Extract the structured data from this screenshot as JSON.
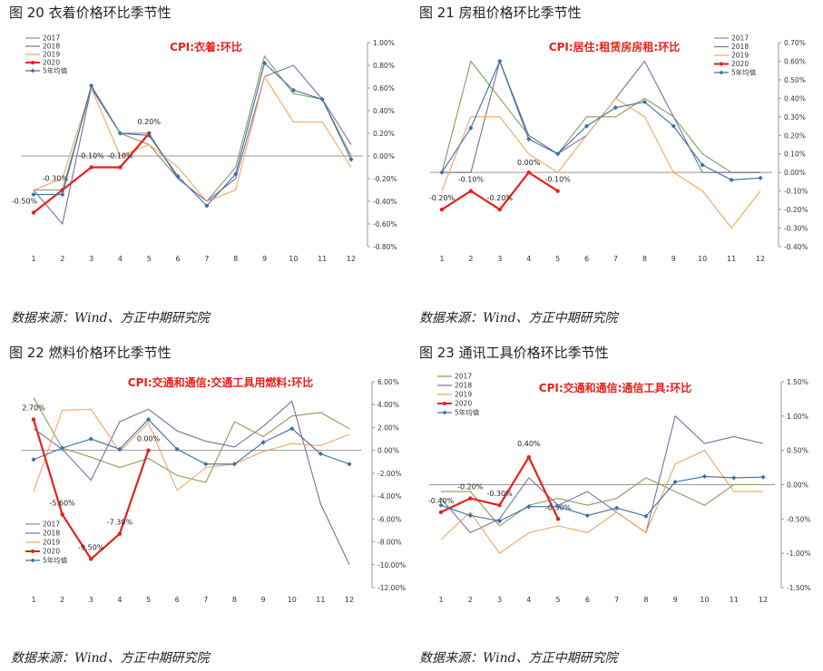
{
  "source_text": "数据来源：Wind、方正中期研究院",
  "chart_data": [
    {
      "type": "line",
      "figure_title": "图 20   衣着价格环比季节性",
      "title": "CPI:衣着:环比",
      "x": [
        "1",
        "2",
        "3",
        "4",
        "5",
        "6",
        "7",
        "8",
        "9",
        "10",
        "11",
        "12"
      ],
      "y_axis": {
        "side": "right",
        "min": -0.8,
        "max": 1.0,
        "step": 0.2,
        "decimals": 2,
        "suffix": "%"
      },
      "legend": {
        "position": "top-left",
        "entries": [
          "2017",
          "2018",
          "2019",
          "2020",
          "5年均值"
        ]
      },
      "series": [
        {
          "name": "2017",
          "color": "#8a9a5b",
          "values": [
            -0.3,
            -0.3,
            0.6,
            0.2,
            0.1,
            -0.2,
            -0.4,
            -0.1,
            0.88,
            0.55,
            0.5,
            0.0
          ]
        },
        {
          "name": "2018",
          "color": "#7a6fa0",
          "values": [
            -0.3,
            -0.6,
            0.6,
            0.2,
            0.2,
            -0.2,
            -0.4,
            -0.2,
            0.7,
            0.8,
            0.5,
            0.1
          ]
        },
        {
          "name": "2019",
          "color": "#f4a460",
          "values": [
            -0.3,
            -0.2,
            0.6,
            0.0,
            0.1,
            -0.1,
            -0.4,
            -0.3,
            0.7,
            0.3,
            0.3,
            -0.1
          ]
        },
        {
          "name": "2020",
          "color": "#e8211a",
          "values": [
            -0.5,
            -0.3,
            -0.1,
            -0.1,
            0.2,
            null,
            null,
            null,
            null,
            null,
            null,
            null
          ],
          "labels": [
            "-0.50%",
            "-0.30%",
            "-0.10%",
            "-0.10%",
            "0.20%"
          ]
        },
        {
          "name": "5年均值",
          "color": "#3a6ea8",
          "values": [
            -0.34,
            -0.34,
            0.62,
            0.2,
            0.18,
            -0.18,
            -0.44,
            -0.16,
            0.82,
            0.58,
            0.5,
            -0.03
          ]
        }
      ]
    },
    {
      "type": "line",
      "figure_title": "图 21   房租价格环比季节性",
      "title": "CPI:居住:租赁房房租:环比",
      "x": [
        "1",
        "2",
        "3",
        "4",
        "5",
        "6",
        "7",
        "8",
        "9",
        "10",
        "11",
        "12"
      ],
      "y_axis": {
        "side": "right",
        "min": -0.4,
        "max": 0.7,
        "step": 0.1,
        "decimals": 2,
        "suffix": "%"
      },
      "legend": {
        "position": "top-right",
        "entries": [
          "2017",
          "2018",
          "2019",
          "2020",
          "5年均值"
        ]
      },
      "series": [
        {
          "name": "2017",
          "color": "#8a9a5b",
          "values": [
            0.0,
            0.6,
            0.4,
            0.2,
            0.1,
            0.3,
            0.3,
            0.4,
            0.3,
            0.1,
            0.0,
            0.0
          ]
        },
        {
          "name": "2018",
          "color": "#7a6fa0",
          "values": [
            0.0,
            0.0,
            0.6,
            0.2,
            0.1,
            0.2,
            0.4,
            0.6,
            0.3,
            0.0,
            0.0,
            0.0
          ]
        },
        {
          "name": "2019",
          "color": "#f4a460",
          "values": [
            -0.1,
            0.3,
            0.3,
            0.1,
            0.0,
            0.2,
            0.4,
            0.3,
            0.0,
            -0.1,
            -0.3,
            -0.1
          ]
        },
        {
          "name": "2020",
          "color": "#e8211a",
          "values": [
            -0.2,
            -0.1,
            -0.2,
            0.0,
            -0.1,
            null,
            null,
            null,
            null,
            null,
            null,
            null
          ],
          "labels": [
            "-0.20%",
            "-0.10%",
            "-0.20%",
            "0.00%",
            "-0.10%"
          ]
        },
        {
          "name": "5年均值",
          "color": "#3a6ea8",
          "values": [
            0.0,
            0.24,
            0.6,
            0.18,
            0.1,
            0.25,
            0.35,
            0.38,
            0.25,
            0.04,
            -0.04,
            -0.03
          ]
        }
      ]
    },
    {
      "type": "line",
      "figure_title": "图 22   燃料价格环比季节性",
      "title": "CPI:交通和通信:交通工具用燃料:环比",
      "x": [
        "1",
        "2",
        "3",
        "4",
        "5",
        "6",
        "7",
        "8",
        "9",
        "10",
        "11",
        "12"
      ],
      "y_axis": {
        "side": "right",
        "min": -12,
        "max": 6,
        "step": 2,
        "decimals": 2,
        "suffix": "%"
      },
      "legend": {
        "position": "bottom-left",
        "entries": [
          "2017",
          "2018",
          "2019",
          "2020",
          "5年均值"
        ]
      },
      "series": [
        {
          "name": "2017",
          "color": "#8a9a5b",
          "values": [
            4.6,
            0.2,
            -0.6,
            -1.5,
            -0.7,
            -2.2,
            -2.8,
            2.5,
            1.2,
            3.0,
            3.3,
            1.9
          ]
        },
        {
          "name": "2018",
          "color": "#7a6fa0",
          "values": [
            1.9,
            0.1,
            -2.6,
            2.5,
            3.6,
            1.7,
            0.8,
            0.3,
            2.1,
            4.3,
            -4.7,
            -10.0
          ]
        },
        {
          "name": "2019",
          "color": "#f4a460",
          "values": [
            -3.6,
            3.5,
            3.6,
            -0.1,
            2.4,
            -3.5,
            -1.5,
            -1.2,
            -0.1,
            0.6,
            0.4,
            1.4
          ]
        },
        {
          "name": "2020",
          "color": "#e8211a",
          "values": [
            2.7,
            -5.6,
            -9.5,
            -7.3,
            0.0,
            null,
            null,
            null,
            null,
            null,
            null,
            null
          ],
          "labels": [
            "2.70%",
            "-5.60%",
            "-9.50%",
            "-7.30%",
            "0.00%"
          ]
        },
        {
          "name": "5年均值",
          "color": "#3a6ea8",
          "values": [
            -0.8,
            0.2,
            1.0,
            0.1,
            2.7,
            0.1,
            -1.2,
            -1.2,
            0.7,
            1.9,
            -0.3,
            -1.2
          ]
        }
      ]
    },
    {
      "type": "line",
      "figure_title": "图 23   通讯工具价格环比季节性",
      "title": "CPI:交通和通信:通信工具:环比",
      "x": [
        "1",
        "2",
        "3",
        "4",
        "5",
        "6",
        "7",
        "8",
        "9",
        "10",
        "11",
        "12"
      ],
      "y_axis": {
        "side": "right",
        "min": -1.5,
        "max": 1.5,
        "step": 0.5,
        "decimals": 2,
        "suffix": "%"
      },
      "legend": {
        "position": "top-left",
        "entries": [
          "2017",
          "2018",
          "2019",
          "2020",
          "5年均值"
        ]
      },
      "series": [
        {
          "name": "2017",
          "color": "#8a9a5b",
          "values": [
            -0.1,
            -0.1,
            -0.6,
            -0.3,
            -0.2,
            -0.3,
            -0.2,
            0.1,
            -0.1,
            -0.3,
            0.0,
            0.0
          ]
        },
        {
          "name": "2018",
          "color": "#7a6fa0",
          "values": [
            -0.2,
            -0.7,
            -0.5,
            0.1,
            -0.3,
            -0.1,
            -0.4,
            -0.7,
            1.0,
            0.6,
            0.7,
            0.6
          ]
        },
        {
          "name": "2019",
          "color": "#f4a460",
          "values": [
            -0.8,
            -0.4,
            -1.0,
            -0.7,
            -0.6,
            -0.7,
            -0.4,
            -0.7,
            0.3,
            0.5,
            -0.1,
            -0.1
          ]
        },
        {
          "name": "2020",
          "color": "#e8211a",
          "values": [
            -0.4,
            -0.2,
            -0.3,
            0.4,
            -0.5,
            null,
            null,
            null,
            null,
            null,
            null,
            null
          ],
          "labels": [
            "-0.40%",
            "-0.20%",
            "-0.30%",
            "0.40%",
            "-0.50%"
          ]
        },
        {
          "name": "5年均值",
          "color": "#3a6ea8",
          "values": [
            -0.3,
            -0.45,
            -0.53,
            -0.32,
            -0.32,
            -0.45,
            -0.34,
            -0.46,
            0.04,
            0.12,
            0.1,
            0.11
          ]
        }
      ]
    }
  ]
}
